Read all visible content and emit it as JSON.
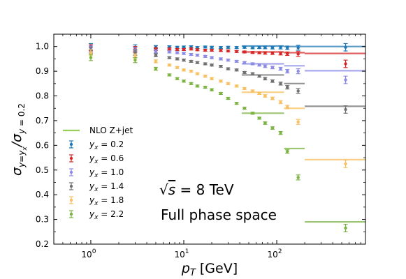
{
  "chart_data": {
    "type": "scatter",
    "xscale": "log",
    "xlim": [
      0.4,
      900
    ],
    "ylim": [
      0.2,
      1.05
    ],
    "xticks": [
      1,
      10,
      100
    ],
    "xtick_labels": [
      "10^0",
      "10^1",
      "10^2"
    ],
    "yticks": [
      0.2,
      0.3,
      0.4,
      0.5,
      0.6,
      0.7,
      0.8,
      0.9,
      1.0
    ],
    "ytick_labels": [
      "0.2",
      "0.3",
      "0.4",
      "0.5",
      "0.6",
      "0.7",
      "0.8",
      "0.9",
      "1.0"
    ],
    "xlabel": "p_T [GeV]",
    "ylabel": "σ_{y=y_x} / σ_{y=0.2}",
    "annotations": [
      "√s = 8 TeV",
      "Full phase space"
    ],
    "legend_placement": "lower-left",
    "nlo_label": "NLO Z+jet",
    "nlo_color": "#9acd5a",
    "series": [
      {
        "name": "y_x = 0.2",
        "color": "#1f77b4",
        "x": [
          1,
          3,
          5,
          7,
          8.5,
          10,
          12,
          14,
          17,
          20,
          25,
          30,
          37,
          45,
          55,
          65,
          75,
          90,
          110,
          130,
          170,
          550
        ],
        "y": [
          1.0,
          0.997,
          0.998,
          0.999,
          0.997,
          0.998,
          0.999,
          0.996,
          0.998,
          0.997,
          0.996,
          0.997,
          0.996,
          0.997,
          0.995,
          0.996,
          0.996,
          0.995,
          0.996,
          0.995,
          0.995,
          0.997
        ],
        "err": [
          0.012,
          0.01,
          0.006,
          0.004,
          0.004,
          0.004,
          0.004,
          0.004,
          0.004,
          0.004,
          0.004,
          0.004,
          0.004,
          0.004,
          0.004,
          0.004,
          0.005,
          0.005,
          0.006,
          0.007,
          0.01,
          0.015
        ],
        "nlo": [
          {
            "x0": 42,
            "x1": 120,
            "y": 1.002
          },
          {
            "x0": 120,
            "x1": 200,
            "y": 1.0
          },
          {
            "x0": 200,
            "x1": 900,
            "y": 1.0
          }
        ]
      },
      {
        "name": "y_x = 0.6",
        "color": "#d62728",
        "x": [
          1,
          3,
          5,
          7,
          8.5,
          10,
          12,
          14,
          17,
          20,
          25,
          30,
          37,
          45,
          55,
          65,
          75,
          90,
          110,
          130,
          170,
          550
        ],
        "y": [
          0.995,
          0.99,
          0.99,
          0.99,
          0.988,
          0.988,
          0.99,
          0.987,
          0.985,
          0.985,
          0.984,
          0.982,
          0.98,
          0.978,
          0.976,
          0.975,
          0.974,
          0.973,
          0.972,
          0.971,
          0.97,
          0.93
        ],
        "err": [
          0.012,
          0.01,
          0.006,
          0.004,
          0.004,
          0.004,
          0.004,
          0.004,
          0.004,
          0.004,
          0.004,
          0.004,
          0.004,
          0.004,
          0.004,
          0.004,
          0.005,
          0.005,
          0.006,
          0.007,
          0.01,
          0.015
        ],
        "nlo": [
          {
            "x0": 42,
            "x1": 120,
            "y": 0.978
          },
          {
            "x0": 120,
            "x1": 200,
            "y": 0.975
          },
          {
            "x0": 200,
            "x1": 900,
            "y": 0.972
          }
        ]
      },
      {
        "name": "y_x = 1.0",
        "color": "#8c8ce6",
        "x": [
          1,
          3,
          5,
          7,
          8.5,
          10,
          12,
          14,
          17,
          20,
          25,
          30,
          37,
          45,
          55,
          65,
          75,
          90,
          110,
          130,
          170,
          550
        ],
        "y": [
          0.99,
          0.985,
          0.98,
          0.978,
          0.975,
          0.972,
          0.968,
          0.965,
          0.96,
          0.955,
          0.95,
          0.945,
          0.94,
          0.935,
          0.93,
          0.925,
          0.92,
          0.915,
          0.91,
          0.9,
          0.9,
          0.865
        ],
        "err": [
          0.012,
          0.01,
          0.006,
          0.004,
          0.004,
          0.004,
          0.004,
          0.004,
          0.004,
          0.004,
          0.004,
          0.004,
          0.004,
          0.004,
          0.004,
          0.004,
          0.005,
          0.005,
          0.006,
          0.007,
          0.01,
          0.015
        ],
        "nlo": [
          {
            "x0": 42,
            "x1": 120,
            "y": 0.93
          },
          {
            "x0": 120,
            "x1": 200,
            "y": 0.922
          },
          {
            "x0": 200,
            "x1": 900,
            "y": 0.902
          }
        ]
      },
      {
        "name": "y_x = 1.4",
        "color": "#707070",
        "x": [
          1,
          3,
          5,
          7,
          8.5,
          10,
          12,
          14,
          17,
          20,
          25,
          30,
          37,
          45,
          55,
          65,
          75,
          90,
          110,
          130,
          170,
          550
        ],
        "y": [
          0.985,
          0.975,
          0.965,
          0.955,
          0.95,
          0.945,
          0.94,
          0.935,
          0.93,
          0.925,
          0.92,
          0.91,
          0.905,
          0.895,
          0.89,
          0.88,
          0.87,
          0.86,
          0.85,
          0.835,
          0.82,
          0.745
        ],
        "err": [
          0.012,
          0.01,
          0.006,
          0.004,
          0.004,
          0.004,
          0.004,
          0.004,
          0.004,
          0.004,
          0.004,
          0.004,
          0.004,
          0.004,
          0.004,
          0.004,
          0.005,
          0.005,
          0.006,
          0.007,
          0.01,
          0.015
        ],
        "nlo": [
          {
            "x0": 42,
            "x1": 120,
            "y": 0.885
          },
          {
            "x0": 120,
            "x1": 200,
            "y": 0.85
          },
          {
            "x0": 200,
            "x1": 900,
            "y": 0.758
          }
        ]
      },
      {
        "name": "y_x = 1.8",
        "color": "#f7c163",
        "x": [
          1,
          3,
          5,
          7,
          8.5,
          10,
          12,
          14,
          17,
          20,
          25,
          30,
          37,
          45,
          55,
          65,
          75,
          90,
          110,
          130,
          170,
          550
        ],
        "y": [
          0.975,
          0.96,
          0.94,
          0.925,
          0.915,
          0.905,
          0.9,
          0.89,
          0.88,
          0.87,
          0.86,
          0.85,
          0.84,
          0.83,
          0.82,
          0.81,
          0.8,
          0.79,
          0.775,
          0.755,
          0.695,
          0.525
        ],
        "err": [
          0.012,
          0.01,
          0.006,
          0.004,
          0.004,
          0.004,
          0.004,
          0.004,
          0.004,
          0.004,
          0.004,
          0.004,
          0.004,
          0.004,
          0.004,
          0.004,
          0.005,
          0.005,
          0.006,
          0.007,
          0.01,
          0.015
        ],
        "nlo": [
          {
            "x0": 42,
            "x1": 120,
            "y": 0.815
          },
          {
            "x0": 120,
            "x1": 200,
            "y": 0.75
          },
          {
            "x0": 200,
            "x1": 900,
            "y": 0.542
          }
        ]
      },
      {
        "name": "y_x = 2.2",
        "color": "#7cb342",
        "x": [
          1,
          3,
          5,
          7,
          8.5,
          10,
          12,
          14,
          17,
          20,
          25,
          30,
          37,
          45,
          55,
          65,
          75,
          90,
          110,
          130,
          170,
          550
        ],
        "y": [
          0.955,
          0.945,
          0.91,
          0.885,
          0.87,
          0.86,
          0.85,
          0.84,
          0.835,
          0.825,
          0.81,
          0.79,
          0.77,
          0.75,
          0.73,
          0.71,
          0.69,
          0.67,
          0.65,
          0.575,
          0.47,
          0.265
        ],
        "err": [
          0.012,
          0.01,
          0.006,
          0.004,
          0.004,
          0.004,
          0.004,
          0.004,
          0.004,
          0.004,
          0.004,
          0.004,
          0.004,
          0.004,
          0.004,
          0.004,
          0.005,
          0.005,
          0.006,
          0.007,
          0.01,
          0.015
        ],
        "nlo": [
          {
            "x0": 42,
            "x1": 120,
            "y": 0.73
          },
          {
            "x0": 120,
            "x1": 200,
            "y": 0.587
          },
          {
            "x0": 200,
            "x1": 900,
            "y": 0.29
          }
        ]
      }
    ]
  }
}
